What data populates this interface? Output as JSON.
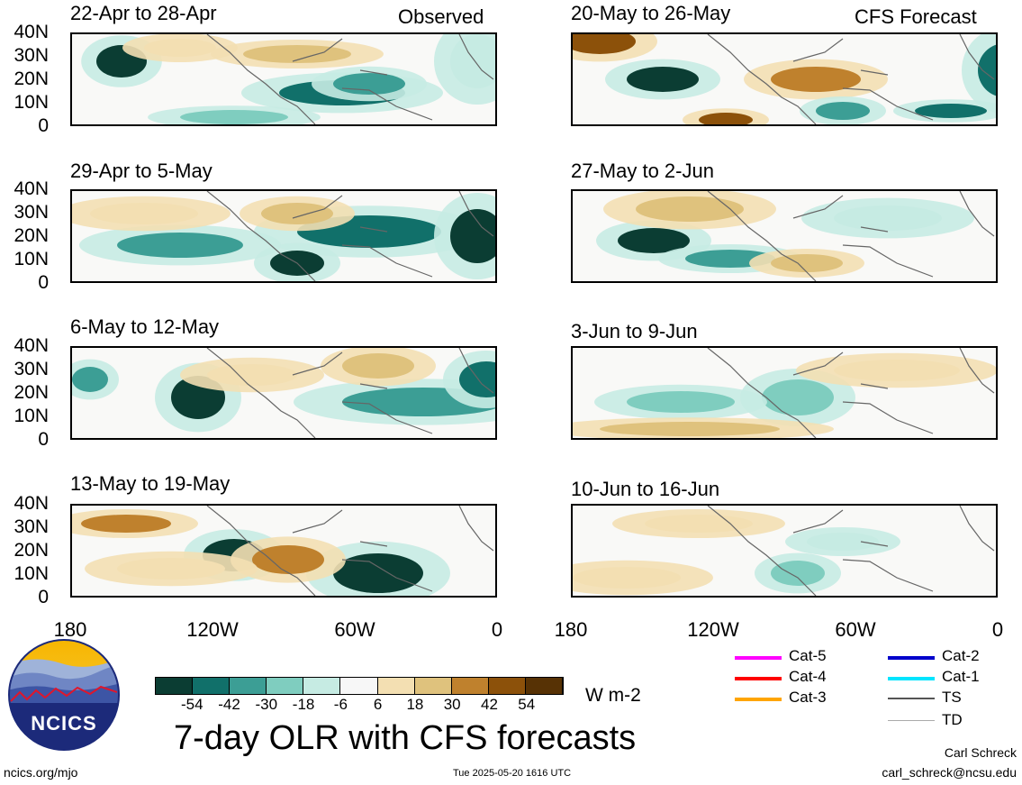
{
  "columns": {
    "left_heading": "Observed",
    "right_heading": "CFS Forecast"
  },
  "panels_left": [
    {
      "period": "22-Apr to 28-Apr"
    },
    {
      "period": "29-Apr to 5-May"
    },
    {
      "period": "6-May to 12-May"
    },
    {
      "period": "13-May to 19-May"
    }
  ],
  "panels_right": [
    {
      "period": "20-May to 26-May"
    },
    {
      "period": "27-May to 2-Jun"
    },
    {
      "period": "3-Jun to 9-Jun"
    },
    {
      "period": "10-Jun to 16-Jun"
    }
  ],
  "lat_labels": [
    "40N",
    "30N",
    "20N",
    "10N",
    "0"
  ],
  "lon_labels": [
    "180",
    "120W",
    "60W",
    "0"
  ],
  "colorbar": {
    "unit": "W m-2",
    "tick_labels": [
      "-54",
      "-42",
      "-30",
      "-18",
      "-6",
      "6",
      "18",
      "30",
      "42",
      "54"
    ],
    "colors": [
      "#0b3d33",
      "#11706a",
      "#3c9e95",
      "#7fcdbf",
      "#c6ebe3",
      "#f7f7f7",
      "#f3dfb2",
      "#dfc27d",
      "#bf812d",
      "#8c510a",
      "#573205"
    ]
  },
  "legend": [
    {
      "label": "Cat-5",
      "color": "#ff00ff"
    },
    {
      "label": "Cat-4",
      "color": "#ff0000"
    },
    {
      "label": "Cat-3",
      "color": "#ffa500"
    },
    {
      "label": "Cat-2",
      "color": "#0000cc"
    },
    {
      "label": "Cat-1",
      "color": "#00e5ff"
    },
    {
      "label": "TS",
      "color": "#555555"
    },
    {
      "label": "TD",
      "color": "#aaaaaa"
    }
  ],
  "title": "7-day OLR with CFS forecasts",
  "logo_text": "NCICS",
  "footer": {
    "url": "ncics.org/mjo",
    "timestamp": "Tue 2025-05-20 1616 UTC",
    "author": "Carl Schreck",
    "email": "carl_schreck@ncsu.edu"
  }
}
